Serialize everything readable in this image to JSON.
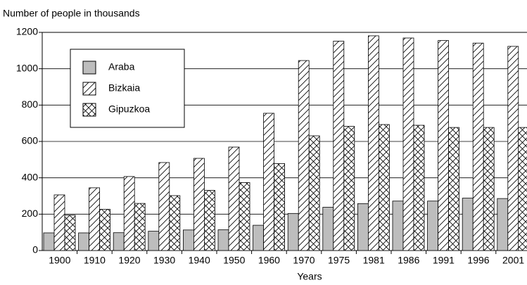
{
  "chart_data": {
    "type": "bar",
    "y_label": "Number of people in thousands",
    "x_label": "Years",
    "categories": [
      "1900",
      "1910",
      "1920",
      "1930",
      "1940",
      "1950",
      "1960",
      "1970",
      "1975",
      "1981",
      "1986",
      "1991",
      "1996",
      "2001"
    ],
    "series": [
      {
        "name": "Araba",
        "color": "#bdbdbd",
        "pattern": "solid",
        "values": [
          97,
          97,
          98,
          106,
          113,
          114,
          139,
          204,
          238,
          258,
          272,
          272,
          288,
          286
        ]
      },
      {
        "name": "Bizkaia",
        "color": "#000000",
        "pattern": "diagonal",
        "values": [
          306,
          345,
          407,
          484,
          507,
          569,
          755,
          1045,
          1152,
          1181,
          1169,
          1155,
          1141,
          1123
        ]
      },
      {
        "name": "Gipuzkoa",
        "color": "#000000",
        "pattern": "crosshatch",
        "values": [
          194,
          227,
          259,
          302,
          331,
          374,
          478,
          631,
          683,
          693,
          689,
          677,
          677,
          677
        ]
      }
    ],
    "ylim": [
      0,
      1200
    ],
    "yticks": [
      0,
      200,
      400,
      600,
      800,
      1000,
      1200
    ],
    "grid": true,
    "legend": "upper left"
  }
}
